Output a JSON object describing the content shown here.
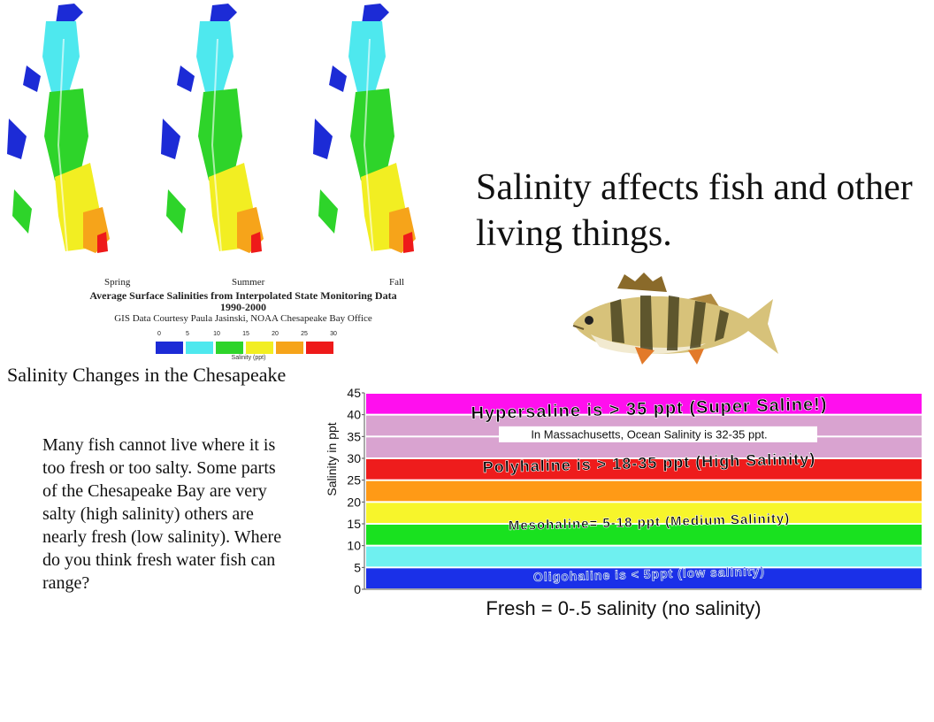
{
  "slide": {
    "heading": "Salinity affects fish and other living things.",
    "maps_title": "Salinity Changes in the Chesapeake",
    "body_text": "Many fish cannot live where it is too fresh or too salty.  Some parts of the Chesapeake Bay are very salty (high salinity) others are nearly fresh (low salinity).  Where do you think fresh water fish can range?",
    "chart_caption": "Fresh = 0-.5 salinity (no salinity)"
  },
  "maps": {
    "panels": [
      "Spring",
      "Summer",
      "Fall"
    ],
    "caption_title": "Average Surface Salinities from Interpolated State Monitoring Data",
    "caption_years": "1990-2000",
    "caption_credit": "GIS Data Courtesy Paula Jasinski, NOAA Chesapeake Bay Office",
    "legend_ticks": [
      "0",
      "5",
      "10",
      "15",
      "20",
      "25",
      "30"
    ],
    "legend_colors": [
      "#1c2bd6",
      "#4ee8ee",
      "#2ed42a",
      "#f2ee22",
      "#f6a41a",
      "#ee1a1a"
    ],
    "legend_unit": "Salinity (ppt)"
  },
  "fish": {
    "icon": "yellow-perch-fish-icon"
  },
  "chart_data": {
    "type": "bar",
    "orientation": "horizontal-bands",
    "ylabel": "Salinity in ppt",
    "xlabel": "",
    "ylim": [
      0,
      45
    ],
    "yticks": [
      "0",
      "5",
      "10",
      "15",
      "20",
      "25",
      "30",
      "35",
      "40",
      "45"
    ],
    "grid": false,
    "bands": [
      {
        "from": 0,
        "to": 5,
        "color": "#1a30e8"
      },
      {
        "from": 5,
        "to": 10,
        "color": "#6ff0f0"
      },
      {
        "from": 10,
        "to": 15,
        "color": "#19e11f"
      },
      {
        "from": 15,
        "to": 20,
        "color": "#f7f52b"
      },
      {
        "from": 20,
        "to": 25,
        "color": "#ff9a16"
      },
      {
        "from": 25,
        "to": 30,
        "color": "#ee1c1c"
      },
      {
        "from": 30,
        "to": 35,
        "color": "#d9a3d0"
      },
      {
        "from": 35,
        "to": 40,
        "color": "#d9a3d0"
      },
      {
        "from": 40,
        "to": 45,
        "color": "#ff0fee"
      }
    ],
    "annotations": [
      {
        "text": "Hypersaline is > 35 ppt (Super Saline!)",
        "y": 41.5,
        "color": "#000000",
        "size": 20,
        "style": "wordart"
      },
      {
        "text": "In Massachusetts, Ocean Salinity is 32-35 ppt.",
        "y": 35.5,
        "color": "#111111",
        "size": 13,
        "style": "box"
      },
      {
        "text": "Polyhaline is > 18-35 ppt (High Salinity)",
        "y": 29,
        "color": "#000000",
        "size": 18,
        "style": "wordart"
      },
      {
        "text": "Mesohaline= 5-18 ppt (Medium Salinity)",
        "y": 15.5,
        "color": "#000000",
        "size": 15,
        "style": "wordart"
      },
      {
        "text": "Oligohaline is < 5ppt (low salinity)",
        "y": 3.5,
        "color": "#1a3fd0",
        "size": 14,
        "style": "wordart"
      }
    ]
  }
}
